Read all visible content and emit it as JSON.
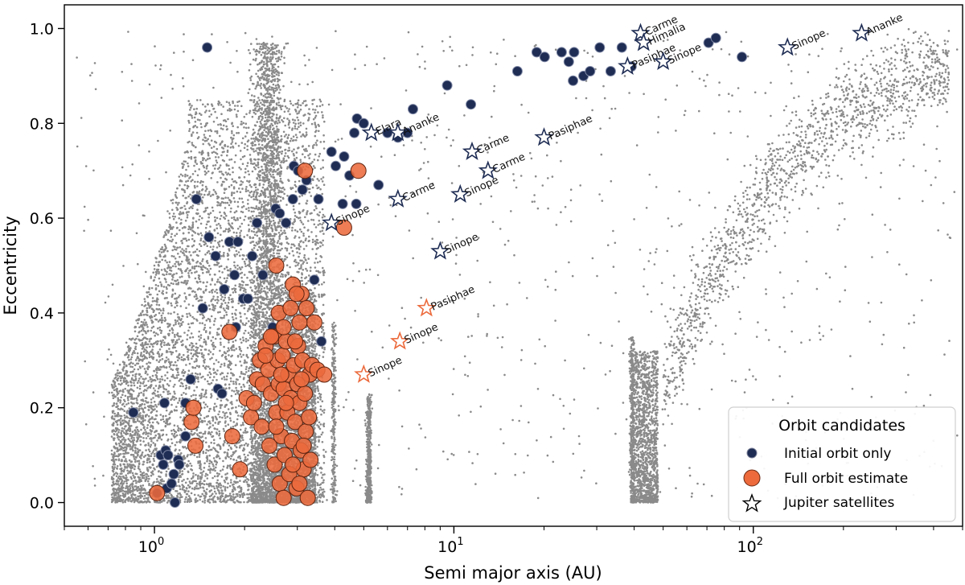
{
  "chart_data": {
    "type": "scatter",
    "xlabel": "Semi major axis (AU)",
    "ylabel": "Eccentricity",
    "xscale": "log",
    "xlim": [
      0.5,
      500
    ],
    "ylim": [
      -0.05,
      1.05
    ],
    "x_ticks": [
      {
        "value": 1,
        "base": "10",
        "exp": "0"
      },
      {
        "value": 10,
        "base": "10",
        "exp": "1"
      },
      {
        "value": 100,
        "base": "10",
        "exp": "2"
      }
    ],
    "y_ticks": [
      "0.0",
      "0.2",
      "0.4",
      "0.6",
      "0.8",
      "1.0"
    ],
    "grid": false,
    "legend": {
      "title": "Orbit candidates",
      "placement": "lower-right",
      "entries": [
        "Initial orbit only",
        "Full orbit estimate",
        "Jupiter satellites"
      ]
    },
    "colors": {
      "background_population": "#8a8a8a",
      "initial_orbit": "#1f2d54",
      "full_orbit": "#ec6a3c",
      "satellite_blue": "#1f2d54",
      "satellite_orange": "#ec6a3c"
    },
    "background_population": {
      "description_regions": [
        {
          "name": "main-belt",
          "a_range": [
            0.7,
            3.7
          ],
          "e_range": [
            0.0,
            0.95
          ]
        },
        {
          "name": "hilda-trojan",
          "a_range": [
            3.9,
            5.3
          ],
          "e_range": [
            0.0,
            0.4
          ]
        },
        {
          "name": "kuiper-belt",
          "a_range": [
            35,
            50
          ],
          "e_range": [
            0.0,
            0.35
          ]
        },
        {
          "name": "scattered-disk",
          "a_range": [
            50,
            450
          ],
          "e_range": [
            0.2,
            1.0
          ]
        }
      ]
    },
    "series": [
      {
        "name": "Initial orbit only",
        "points": [
          [
            0.85,
            0.19
          ],
          [
            1.02,
            0.02
          ],
          [
            1.05,
            0.1
          ],
          [
            1.07,
            0.08
          ],
          [
            1.08,
            0.21
          ],
          [
            1.09,
            0.11
          ],
          [
            1.1,
            0.03
          ],
          [
            1.11,
            0.1
          ],
          [
            1.14,
            0.04
          ],
          [
            1.16,
            0.06
          ],
          [
            1.17,
            0.0
          ],
          [
            1.2,
            0.09
          ],
          [
            1.21,
            0.08
          ],
          [
            1.27,
            0.14
          ],
          [
            1.27,
            0.21
          ],
          [
            1.32,
            0.26
          ],
          [
            1.38,
            0.64
          ],
          [
            1.45,
            0.41
          ],
          [
            1.5,
            0.96
          ],
          [
            1.52,
            0.56
          ],
          [
            1.6,
            0.52
          ],
          [
            1.63,
            0.24
          ],
          [
            1.68,
            0.23
          ],
          [
            1.71,
            0.45
          ],
          [
            1.78,
            0.55
          ],
          [
            1.85,
            0.48
          ],
          [
            1.87,
            0.37
          ],
          [
            1.9,
            0.55
          ],
          [
            1.98,
            0.43
          ],
          [
            2.05,
            0.43
          ],
          [
            2.12,
            0.52
          ],
          [
            2.2,
            0.59
          ],
          [
            2.3,
            0.48
          ],
          [
            2.48,
            0.37
          ],
          [
            2.54,
            0.62
          ],
          [
            2.62,
            0.61
          ],
          [
            2.75,
            0.59
          ],
          [
            2.9,
            0.64
          ],
          [
            2.92,
            0.71
          ],
          [
            3.02,
            0.7
          ],
          [
            3.12,
            0.66
          ],
          [
            3.22,
            0.68
          ],
          [
            3.42,
            0.47
          ],
          [
            3.53,
            0.64
          ],
          [
            3.61,
            0.34
          ],
          [
            3.9,
            0.74
          ],
          [
            4.03,
            0.71
          ],
          [
            4.25,
            0.63
          ],
          [
            4.3,
            0.73
          ],
          [
            4.48,
            0.69
          ],
          [
            4.65,
            0.78
          ],
          [
            4.72,
            0.63
          ],
          [
            4.75,
            0.81
          ],
          [
            5.0,
            0.8
          ],
          [
            5.6,
            0.67
          ],
          [
            6.0,
            0.78
          ],
          [
            6.5,
            0.77
          ],
          [
            7.0,
            0.78
          ],
          [
            7.3,
            0.83
          ],
          [
            9.5,
            0.88
          ],
          [
            11.4,
            0.84
          ],
          [
            16.3,
            0.91
          ],
          [
            18.9,
            0.95
          ],
          [
            20.1,
            0.94
          ],
          [
            22.9,
            0.95
          ],
          [
            24.2,
            0.93
          ],
          [
            25.0,
            0.89
          ],
          [
            25.2,
            0.95
          ],
          [
            27.1,
            0.9
          ],
          [
            28.5,
            0.91
          ],
          [
            30.7,
            0.96
          ],
          [
            33.4,
            0.91
          ],
          [
            36.4,
            0.96
          ],
          [
            39.2,
            0.92
          ],
          [
            70.9,
            0.97
          ],
          [
            75.0,
            0.98
          ],
          [
            91.6,
            0.94
          ]
        ]
      },
      {
        "name": "Full orbit estimate",
        "points": [
          [
            1.02,
            0.02
          ],
          [
            1.33,
            0.17
          ],
          [
            1.35,
            0.2
          ],
          [
            1.37,
            0.12
          ],
          [
            1.78,
            0.36
          ],
          [
            1.82,
            0.14
          ],
          [
            1.93,
            0.07
          ],
          [
            2.03,
            0.22
          ],
          [
            2.1,
            0.18
          ],
          [
            2.15,
            0.21
          ],
          [
            2.2,
            0.26
          ],
          [
            2.25,
            0.3
          ],
          [
            2.28,
            0.16
          ],
          [
            2.3,
            0.25
          ],
          [
            2.35,
            0.33
          ],
          [
            2.4,
            0.28
          ],
          [
            2.42,
            0.12
          ],
          [
            2.45,
            0.23
          ],
          [
            2.5,
            0.35
          ],
          [
            2.52,
            0.08
          ],
          [
            2.55,
            0.19
          ],
          [
            2.58,
            0.3
          ],
          [
            2.6,
            0.25
          ],
          [
            2.62,
            0.04
          ],
          [
            2.65,
            0.14
          ],
          [
            2.68,
            0.31
          ],
          [
            2.7,
            0.24
          ],
          [
            2.72,
            0.1
          ],
          [
            2.75,
            0.34
          ],
          [
            2.78,
            0.19
          ],
          [
            2.8,
            0.27
          ],
          [
            2.82,
            0.06
          ],
          [
            2.85,
            0.22
          ],
          [
            2.88,
            0.13
          ],
          [
            2.9,
            0.46
          ],
          [
            2.92,
            0.29
          ],
          [
            2.95,
            0.17
          ],
          [
            2.98,
            0.03
          ],
          [
            3.0,
            0.25
          ],
          [
            3.02,
            0.33
          ],
          [
            3.05,
            0.21
          ],
          [
            3.08,
            0.11
          ],
          [
            3.1,
            0.44
          ],
          [
            3.12,
            0.3
          ],
          [
            3.15,
            0.07
          ],
          [
            3.18,
            0.23
          ],
          [
            3.2,
            0.15
          ],
          [
            3.22,
            0.41
          ],
          [
            3.25,
            0.01
          ],
          [
            3.28,
            0.18
          ],
          [
            3.3,
            0.27
          ],
          [
            3.32,
            0.09
          ],
          [
            3.36,
            0.29
          ],
          [
            3.42,
            0.38
          ],
          [
            3.5,
            0.28
          ],
          [
            3.69,
            0.27
          ],
          [
            2.55,
            0.5
          ],
          [
            2.98,
            0.44
          ],
          [
            3.18,
            0.7
          ],
          [
            4.3,
            0.58
          ],
          [
            4.8,
            0.7
          ],
          [
            2.6,
            0.4
          ],
          [
            2.7,
            0.37
          ],
          [
            2.85,
            0.41
          ],
          [
            3.05,
            0.38
          ],
          [
            2.45,
            0.35
          ],
          [
            2.35,
            0.31
          ],
          [
            2.65,
            0.27
          ],
          [
            2.75,
            0.21
          ],
          [
            2.95,
            0.34
          ],
          [
            3.1,
            0.26
          ],
          [
            2.55,
            0.16
          ],
          [
            2.9,
            0.08
          ],
          [
            3.15,
            0.12
          ],
          [
            2.7,
            0.01
          ],
          [
            3.05,
            0.04
          ]
        ]
      },
      {
        "name": "Jupiter satellites",
        "points": [
          {
            "a": 3.9,
            "e": 0.59,
            "label": "Sinope",
            "color": "blue"
          },
          {
            "a": 5.3,
            "e": 0.78,
            "label": "Elara",
            "color": "blue"
          },
          {
            "a": 6.5,
            "e": 0.78,
            "label": "Ananke",
            "color": "blue"
          },
          {
            "a": 6.5,
            "e": 0.64,
            "label": "Carme",
            "color": "blue"
          },
          {
            "a": 10.5,
            "e": 0.65,
            "label": "Sinope",
            "color": "blue"
          },
          {
            "a": 11.5,
            "e": 0.74,
            "label": "Carme",
            "color": "blue"
          },
          {
            "a": 13.0,
            "e": 0.7,
            "label": "Carme",
            "color": "blue"
          },
          {
            "a": 9.0,
            "e": 0.53,
            "label": "Sinope",
            "color": "blue"
          },
          {
            "a": 20.0,
            "e": 0.77,
            "label": "Pasiphae",
            "color": "blue"
          },
          {
            "a": 38.0,
            "e": 0.92,
            "label": "Pasiphae",
            "color": "blue"
          },
          {
            "a": 42.0,
            "e": 0.99,
            "label": "Carme",
            "color": "blue"
          },
          {
            "a": 43.0,
            "e": 0.97,
            "label": "Himalia",
            "color": "blue"
          },
          {
            "a": 50.0,
            "e": 0.93,
            "label": "Sinope",
            "color": "blue"
          },
          {
            "a": 130.0,
            "e": 0.96,
            "label": "Sinope",
            "color": "blue"
          },
          {
            "a": 230.0,
            "e": 0.99,
            "label": "Ananke",
            "color": "blue"
          },
          {
            "a": 5.0,
            "e": 0.27,
            "label": "Sinope",
            "color": "orange"
          },
          {
            "a": 6.6,
            "e": 0.34,
            "label": "Sinope",
            "color": "orange"
          },
          {
            "a": 8.1,
            "e": 0.41,
            "label": "Pasiphae",
            "color": "orange"
          }
        ]
      }
    ]
  }
}
